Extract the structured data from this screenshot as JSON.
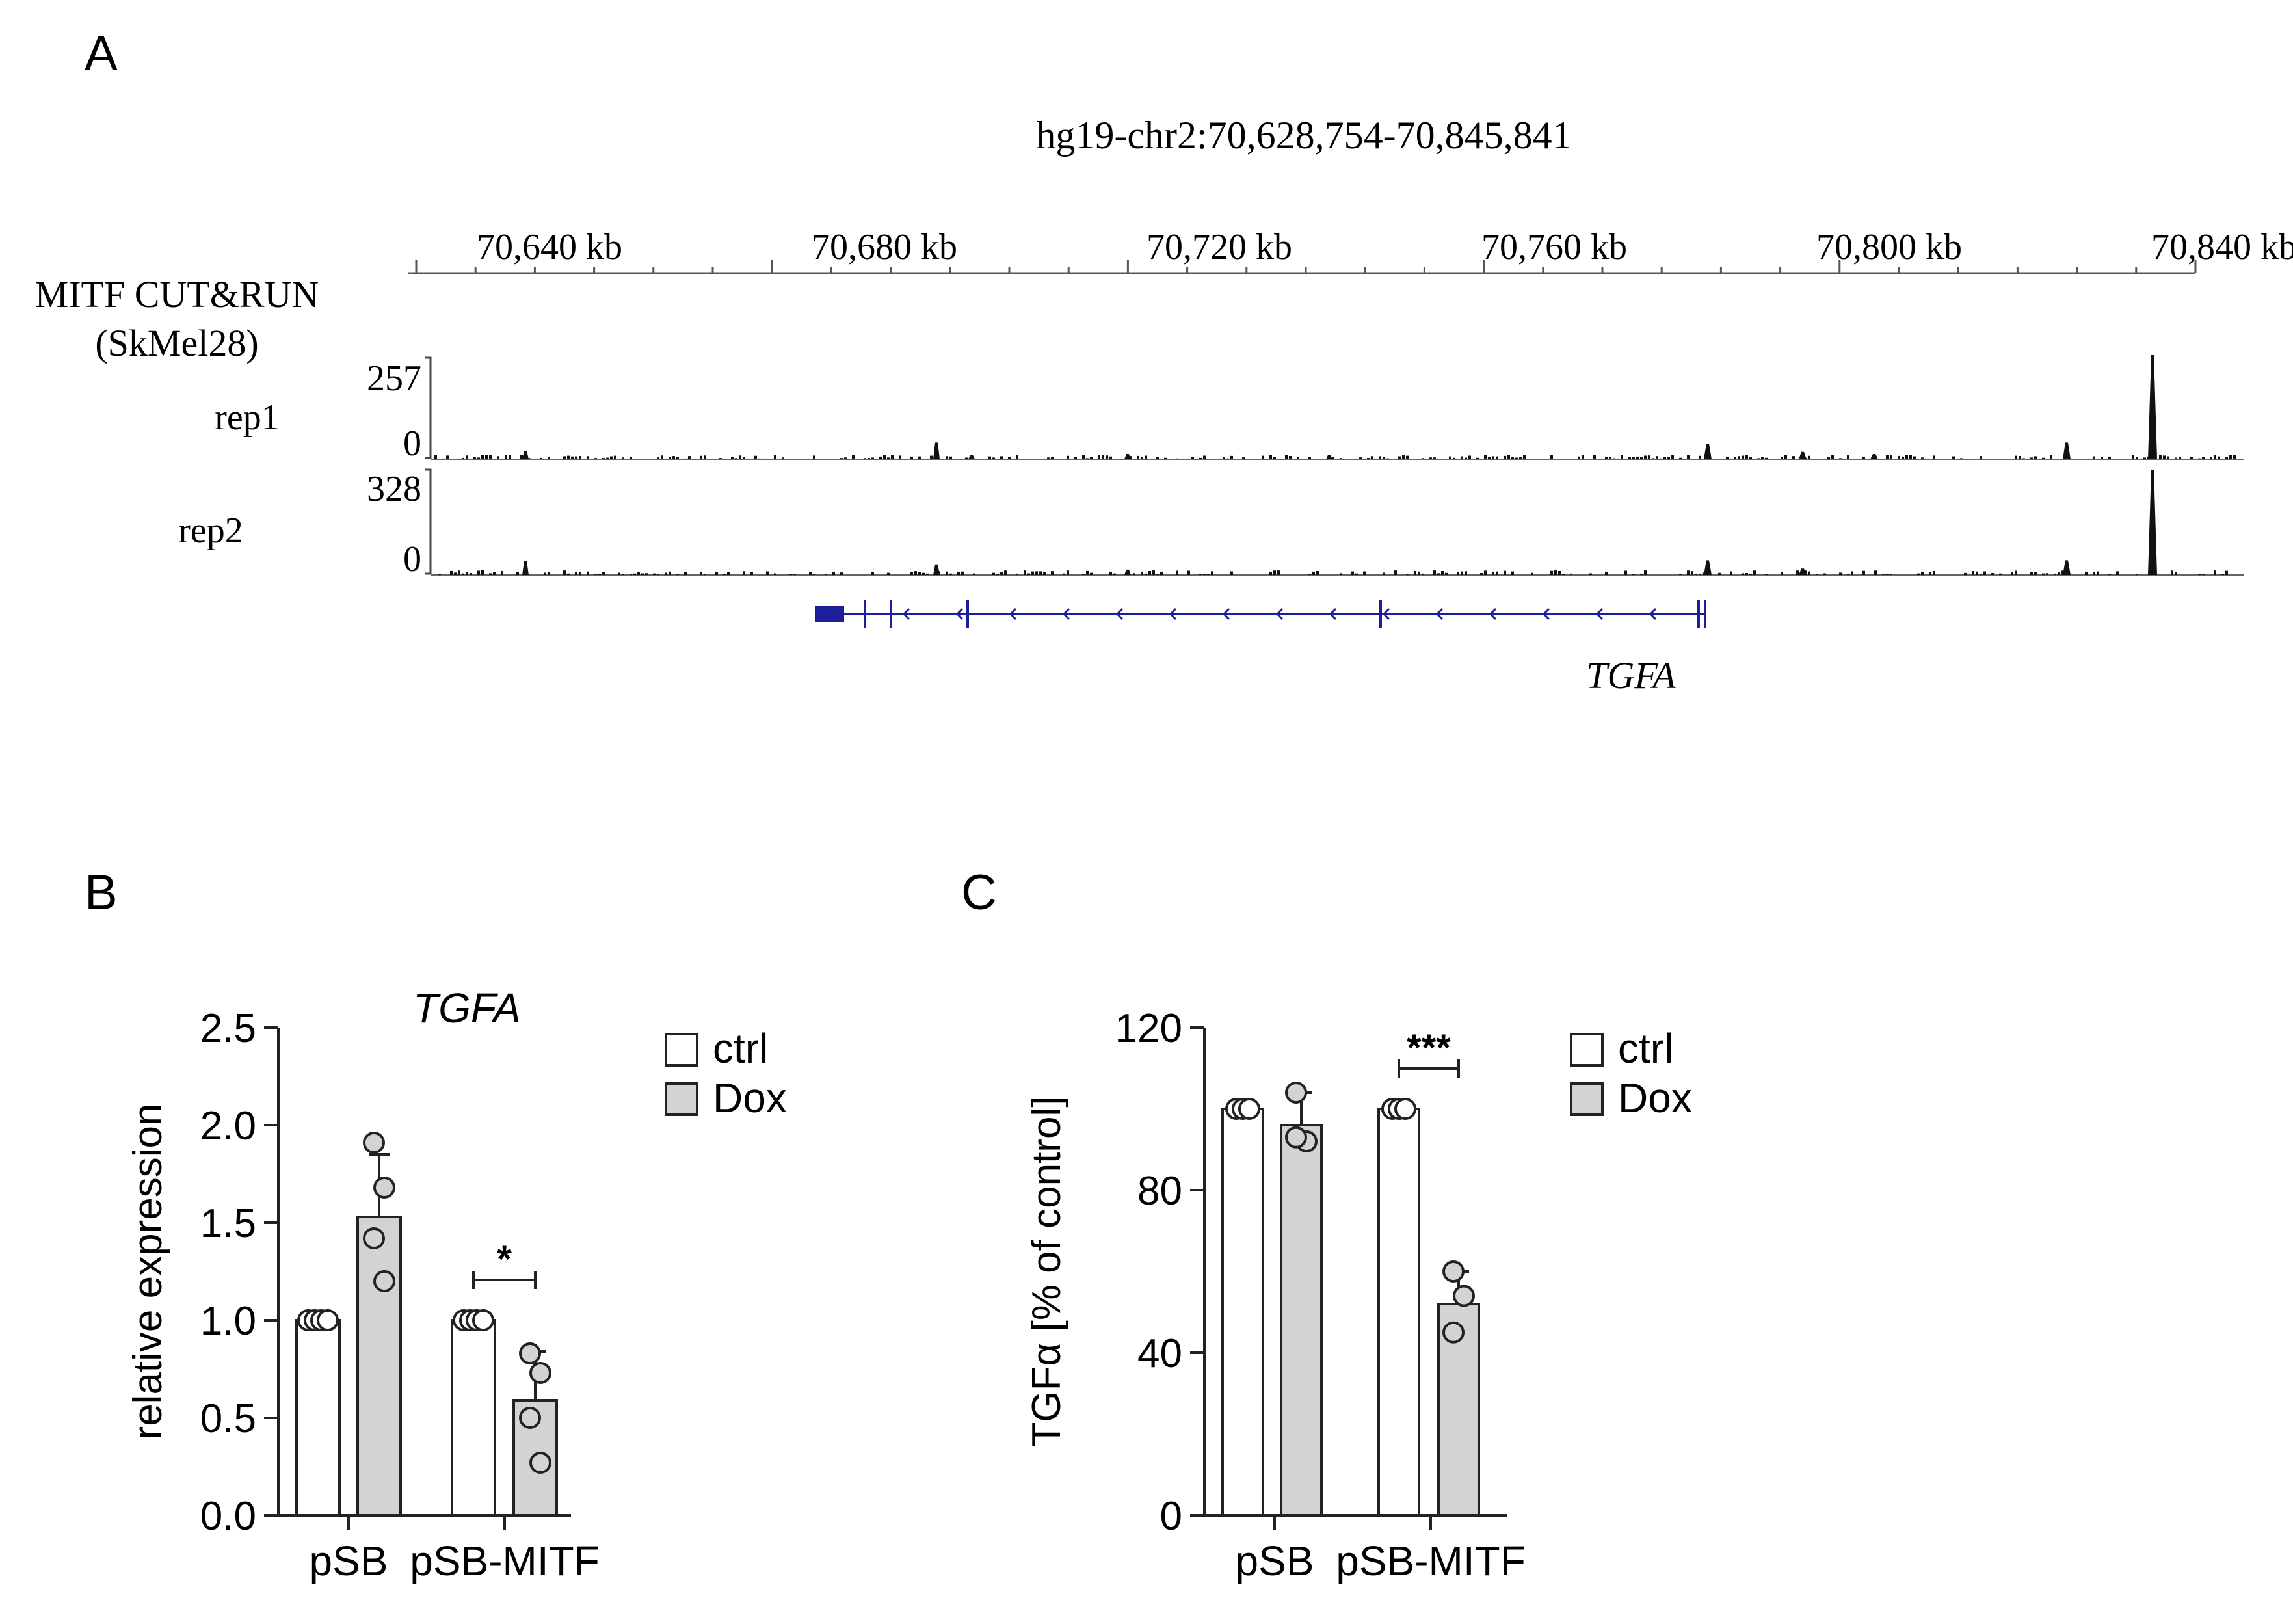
{
  "panels": {
    "A": {
      "letter": "A"
    },
    "B": {
      "letter": "B"
    },
    "C": {
      "letter": "C"
    }
  },
  "track": {
    "locus": "hg19-chr2:70,628,754-70,845,841",
    "ruler_labels": [
      "70,640 kb",
      "70,680 kb",
      "70,720 kb",
      "70,760 kb",
      "70,800 kb",
      "70,840 kb"
    ],
    "dataset_label_line1": "MITF CUT&RUN",
    "dataset_label_line2": "(SkMel28)",
    "rep1": {
      "name": "rep1",
      "scale_max": "257",
      "scale_min": "0"
    },
    "rep2": {
      "name": "rep2",
      "scale_max": "328",
      "scale_min": "0"
    },
    "gene": "TGFA",
    "gene_color": "#1e1e9a"
  },
  "chart_data": [
    {
      "panel": "B",
      "type": "bar",
      "title": "TGFA",
      "ylabel": "relative expression",
      "ylim": [
        0,
        2.5
      ],
      "yticks": [
        "0.0",
        "0.5",
        "1.0",
        "1.5",
        "2.0",
        "2.5"
      ],
      "categories": [
        "pSB",
        "pSB-MITF"
      ],
      "series": [
        {
          "name": "ctrl",
          "color": "#ffffff",
          "values": [
            1.0,
            1.0
          ],
          "errors": [
            0,
            0
          ],
          "points": [
            [
              1.0,
              1.0,
              1.0,
              1.0
            ],
            [
              1.0,
              1.0,
              1.0,
              1.0
            ]
          ]
        },
        {
          "name": "Dox",
          "color": "#d3d3d3",
          "values": [
            1.53,
            0.59
          ],
          "errors": [
            0.32,
            0.25
          ],
          "points": [
            [
              1.91,
              1.68,
              1.42,
              1.2
            ],
            [
              0.83,
              0.73,
              0.5,
              0.27
            ]
          ]
        }
      ],
      "annotation": "*",
      "legend": [
        "ctrl",
        "Dox"
      ]
    },
    {
      "panel": "C",
      "type": "bar",
      "ylabel": "TGFα [% of control]",
      "ylim": [
        0,
        120
      ],
      "yticks": [
        "0",
        "40",
        "80",
        "120"
      ],
      "categories": [
        "pSB",
        "pSB-MITF"
      ],
      "series": [
        {
          "name": "ctrl",
          "color": "#ffffff",
          "values": [
            100,
            100
          ],
          "errors": [
            0,
            0
          ],
          "points": [
            [
              100,
              100,
              100
            ],
            [
              100,
              100,
              100
            ]
          ]
        },
        {
          "name": "Dox",
          "color": "#d3d3d3",
          "values": [
            96,
            52
          ],
          "errors": [
            8,
            8
          ],
          "points": [
            [
              104,
              92,
              93
            ],
            [
              60,
              54,
              45
            ]
          ]
        }
      ],
      "annotation": "***",
      "legend": [
        "ctrl",
        "Dox"
      ]
    }
  ]
}
